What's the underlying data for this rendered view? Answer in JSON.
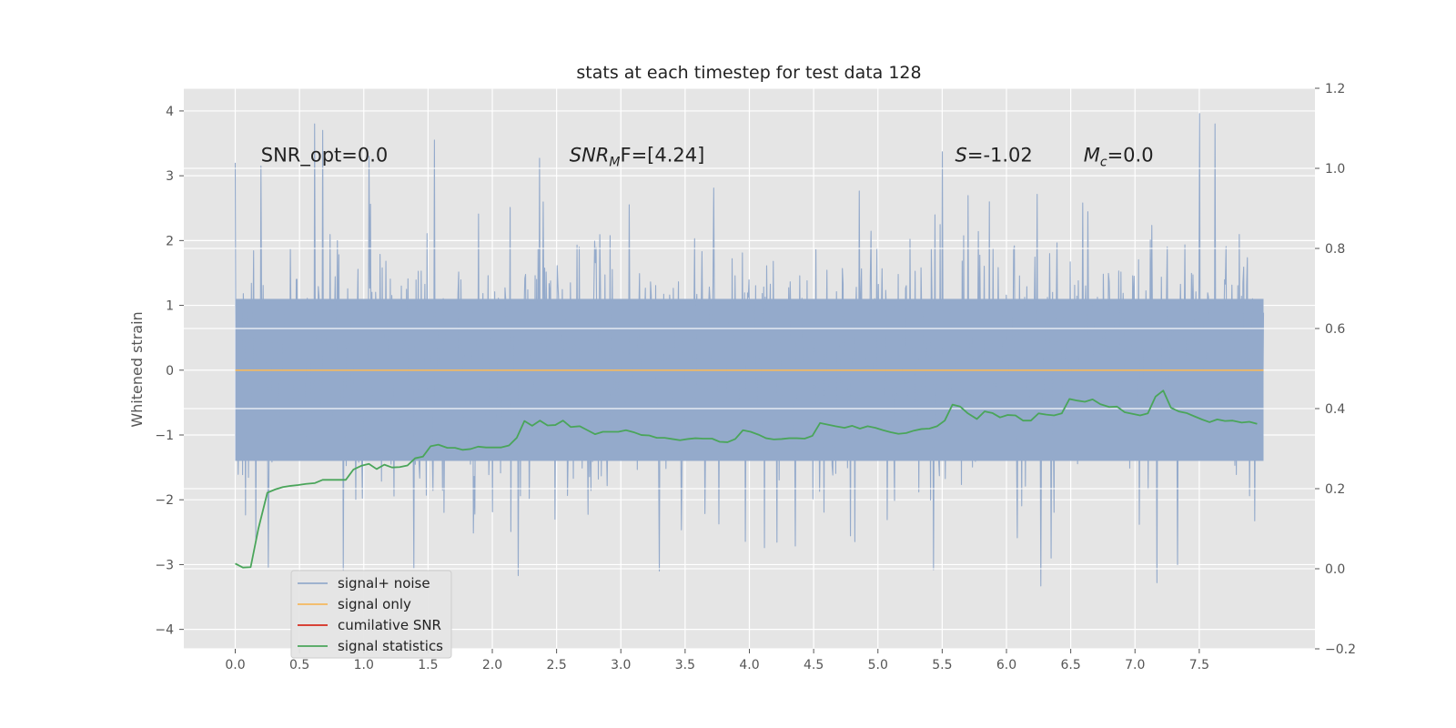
{
  "chart_data": {
    "type": "line",
    "title": "stats at each timestep for test data 128",
    "ylabel": "Whitened strain",
    "xlim": [
      -0.4,
      8.4
    ],
    "ylim": [
      -4.3,
      4.35
    ],
    "y2lim": [
      -0.2,
      1.2
    ],
    "xticks": [
      0.0,
      0.5,
      1.0,
      1.5,
      2.0,
      2.5,
      3.0,
      3.5,
      4.0,
      4.5,
      5.0,
      5.5,
      6.0,
      6.5,
      7.0,
      7.5
    ],
    "xtick_labels": [
      "0.0",
      "0.5",
      "1.0",
      "1.5",
      "2.0",
      "2.5",
      "3.0",
      "3.5",
      "4.0",
      "4.5",
      "5.0",
      "5.5",
      "6.0",
      "6.5",
      "7.0",
      "7.5"
    ],
    "yticks": [
      -4,
      -3,
      -2,
      -1,
      0,
      1,
      2,
      3,
      4
    ],
    "ytick_labels": [
      "−4",
      "−3",
      "−2",
      "−1",
      "0",
      "1",
      "2",
      "3",
      "4"
    ],
    "y2ticks": [
      -0.2,
      0.0,
      0.2,
      0.4,
      0.6,
      0.8,
      1.0,
      1.2
    ],
    "y2tick_labels": [
      "−0.2",
      "0.0",
      "0.2",
      "0.4",
      "0.6",
      "0.8",
      "1.0",
      "1.2"
    ],
    "grid": true,
    "legend_position": "lower-left",
    "annotations": [
      {
        "id": "snr-opt",
        "text": "SNR_opt=0.0",
        "x": 0.2,
        "y": 3.22
      },
      {
        "id": "snr-mf",
        "text": "SNR",
        "sub": "M",
        "suffix": "F=[4.24]",
        "x": 2.6,
        "y": 3.22
      },
      {
        "id": "s-stat",
        "text": "S",
        "suffix": "=-1.02",
        "x": 5.6,
        "y": 3.22
      },
      {
        "id": "mc",
        "text": "M",
        "sub": "c",
        "suffix": "=0.0",
        "x": 6.6,
        "y": 3.22
      }
    ],
    "noise": {
      "t_start": 0.0,
      "t_end": 8.0,
      "envelope_q": [
        -1.4,
        1.1
      ],
      "peaks": [
        [
          0.0,
          3.2
        ],
        [
          0.2,
          3.15
        ],
        [
          0.62,
          3.8
        ],
        [
          0.68,
          3.7
        ],
        [
          1.04,
          3.3
        ],
        [
          1.55,
          3.55
        ],
        [
          2.37,
          3.27
        ],
        [
          5.5,
          3.37
        ],
        [
          7.5,
          3.96
        ],
        [
          7.62,
          3.8
        ],
        [
          0.84,
          -3.1
        ],
        [
          1.39,
          -3.05
        ],
        [
          2.2,
          -3.17
        ],
        [
          3.3,
          -3.1
        ],
        [
          5.43,
          -3.08
        ],
        [
          6.27,
          -3.33
        ],
        [
          7.17,
          -3.28
        ],
        [
          7.33,
          -3.0
        ],
        [
          6.35,
          -2.9
        ],
        [
          0.26,
          -3.04
        ]
      ]
    },
    "series": [
      {
        "name": "signal+ noise",
        "color": "#94aacb",
        "axis": "left",
        "kind": "noise"
      },
      {
        "name": "signal only",
        "color": "#f5b95e",
        "axis": "left",
        "x": [
          0.0,
          8.0
        ],
        "y": [
          0.0,
          0.0
        ]
      },
      {
        "name": "cumilative SNR",
        "color": "#d62a1e",
        "axis": "left",
        "x": [],
        "y": []
      },
      {
        "name": "signal statistics",
        "color": "#4aa55a",
        "axis": "right",
        "x": [
          0.0,
          0.06,
          0.12,
          0.18,
          0.25,
          0.31,
          0.37,
          0.43,
          0.49,
          0.55,
          0.62,
          0.68,
          0.74,
          0.8,
          0.86,
          0.92,
          0.98,
          1.04,
          1.1,
          1.16,
          1.22,
          1.28,
          1.34,
          1.4,
          1.46,
          1.52,
          1.58,
          1.65,
          1.71,
          1.77,
          1.83,
          1.89,
          1.95,
          2.01,
          2.07,
          2.13,
          2.19,
          2.25,
          2.31,
          2.37,
          2.43,
          2.49,
          2.55,
          2.61,
          2.68,
          2.74,
          2.8,
          2.86,
          2.92,
          2.98,
          3.04,
          3.1,
          3.16,
          3.22,
          3.28,
          3.34,
          3.4,
          3.46,
          3.52,
          3.58,
          3.64,
          3.71,
          3.77,
          3.83,
          3.89,
          3.95,
          4.01,
          4.07,
          4.13,
          4.19,
          4.25,
          4.31,
          4.37,
          4.43,
          4.49,
          4.55,
          4.61,
          4.67,
          4.74,
          4.8,
          4.86,
          4.92,
          4.98,
          5.04,
          5.1,
          5.16,
          5.22,
          5.28,
          5.34,
          5.4,
          5.46,
          5.52,
          5.58,
          5.64,
          5.7,
          5.77,
          5.83,
          5.89,
          5.95,
          6.01,
          6.07,
          6.13,
          6.19,
          6.25,
          6.31,
          6.37,
          6.43,
          6.49,
          6.55,
          6.61,
          6.67,
          6.73,
          6.8,
          6.86,
          6.92,
          6.98,
          7.04,
          7.1,
          7.16,
          7.22,
          7.28,
          7.34,
          7.4,
          7.46,
          7.52,
          7.58,
          7.64,
          7.7,
          7.76,
          7.83,
          7.89,
          7.95
        ],
        "y": [
          0.013,
          0.003,
          0.004,
          0.1,
          0.19,
          0.198,
          0.204,
          0.207,
          0.209,
          0.212,
          0.214,
          0.222,
          0.222,
          0.222,
          0.222,
          0.248,
          0.257,
          0.262,
          0.249,
          0.26,
          0.253,
          0.254,
          0.258,
          0.276,
          0.28,
          0.306,
          0.31,
          0.302,
          0.302,
          0.297,
          0.299,
          0.305,
          0.303,
          0.303,
          0.303,
          0.308,
          0.327,
          0.369,
          0.357,
          0.37,
          0.358,
          0.359,
          0.37,
          0.354,
          0.356,
          0.346,
          0.336,
          0.342,
          0.342,
          0.342,
          0.346,
          0.341,
          0.334,
          0.333,
          0.327,
          0.327,
          0.324,
          0.321,
          0.324,
          0.326,
          0.325,
          0.325,
          0.317,
          0.316,
          0.324,
          0.346,
          0.342,
          0.335,
          0.326,
          0.323,
          0.324,
          0.326,
          0.326,
          0.325,
          0.332,
          0.364,
          0.36,
          0.356,
          0.352,
          0.357,
          0.35,
          0.356,
          0.352,
          0.346,
          0.341,
          0.337,
          0.339,
          0.345,
          0.349,
          0.35,
          0.356,
          0.37,
          0.41,
          0.405,
          0.388,
          0.374,
          0.393,
          0.389,
          0.378,
          0.384,
          0.383,
          0.37,
          0.37,
          0.388,
          0.385,
          0.383,
          0.388,
          0.424,
          0.42,
          0.417,
          0.423,
          0.411,
          0.404,
          0.405,
          0.391,
          0.387,
          0.383,
          0.388,
          0.43,
          0.445,
          0.402,
          0.393,
          0.389,
          0.381,
          0.373,
          0.366,
          0.373,
          0.369,
          0.37,
          0.365,
          0.367,
          0.362
        ]
      }
    ]
  }
}
